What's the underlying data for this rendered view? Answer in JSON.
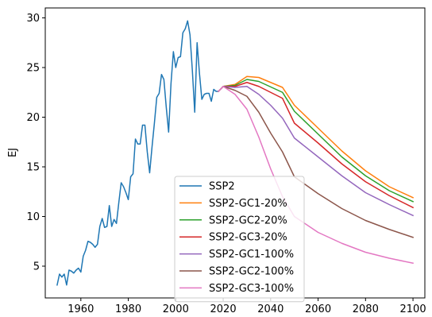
{
  "chart_data": {
    "type": "line",
    "title": "",
    "xlabel": "",
    "ylabel": "EJ",
    "xlim": [
      1945,
      2105
    ],
    "ylim": [
      1.8,
      31.0
    ],
    "xticks": [
      1960,
      1980,
      2000,
      2020,
      2040,
      2060,
      2080,
      2100
    ],
    "yticks": [
      5,
      10,
      15,
      20,
      25,
      30
    ],
    "grid": false,
    "legend_position": "lower-center",
    "series": [
      {
        "name": "SSP2",
        "color": "#1f77b4",
        "x": [
          1950,
          1951,
          1952,
          1953,
          1954,
          1955,
          1956,
          1957,
          1958,
          1959,
          1960,
          1961,
          1962,
          1963,
          1964,
          1965,
          1966,
          1967,
          1968,
          1969,
          1970,
          1971,
          1972,
          1973,
          1974,
          1975,
          1976,
          1977,
          1978,
          1979,
          1980,
          1981,
          1982,
          1983,
          1984,
          1985,
          1986,
          1987,
          1988,
          1989,
          1990,
          1991,
          1992,
          1993,
          1994,
          1995,
          1996,
          1997,
          1998,
          1999,
          2000,
          2001,
          2002,
          2003,
          2004,
          2005,
          2006,
          2007,
          2008,
          2009,
          2010,
          2011,
          2012,
          2013,
          2014,
          2015,
          2016,
          2017,
          2018
        ],
        "y": [
          3.1,
          4.2,
          3.9,
          4.2,
          3.1,
          4.6,
          4.5,
          4.3,
          4.6,
          4.8,
          4.4,
          6.0,
          6.6,
          7.5,
          7.4,
          7.2,
          6.9,
          7.2,
          9.0,
          9.8,
          8.9,
          9.0,
          11.1,
          9.0,
          9.7,
          9.3,
          11.4,
          13.4,
          13.0,
          12.4,
          11.7,
          14.0,
          14.3,
          17.8,
          17.3,
          17.3,
          19.2,
          19.2,
          16.5,
          14.4,
          17.0,
          19.4,
          22.0,
          22.4,
          24.3,
          23.8,
          21.0,
          18.5,
          23.4,
          26.6,
          25.0,
          26.0,
          26.1,
          28.5,
          28.9,
          29.7,
          28.3,
          24.7,
          20.5,
          27.5,
          24.4,
          21.8,
          22.3,
          22.4,
          22.4,
          21.6,
          22.8,
          22.6,
          22.6
        ]
      },
      {
        "name": "SSP2-GC1-20%",
        "color": "#ff7f0e",
        "x": [
          2018,
          2020,
          2025,
          2030,
          2035,
          2045,
          2050,
          2060,
          2070,
          2080,
          2090,
          2100
        ],
        "y": [
          22.6,
          23.1,
          23.3,
          24.1,
          24.0,
          23.0,
          21.2,
          18.9,
          16.6,
          14.6,
          13.0,
          11.9
        ]
      },
      {
        "name": "SSP2-GC2-20%",
        "color": "#2ca02c",
        "x": [
          2018,
          2020,
          2025,
          2030,
          2035,
          2045,
          2050,
          2060,
          2070,
          2080,
          2090,
          2100
        ],
        "y": [
          22.6,
          23.1,
          23.2,
          23.8,
          23.6,
          22.5,
          20.6,
          18.3,
          16.0,
          14.1,
          12.6,
          11.5
        ]
      },
      {
        "name": "SSP2-GC3-20%",
        "color": "#d62728",
        "x": [
          2018,
          2020,
          2025,
          2030,
          2035,
          2045,
          2050,
          2060,
          2070,
          2080,
          2090,
          2100
        ],
        "y": [
          22.6,
          23.1,
          23.1,
          23.5,
          23.1,
          21.9,
          19.4,
          17.4,
          15.3,
          13.5,
          12.1,
          10.9
        ]
      },
      {
        "name": "SSP2-GC1-100%",
        "color": "#9467bd",
        "x": [
          2018,
          2020,
          2025,
          2030,
          2035,
          2040,
          2045,
          2050,
          2060,
          2070,
          2080,
          2090,
          2100
        ],
        "y": [
          22.6,
          23.1,
          23.0,
          23.1,
          22.3,
          21.2,
          19.9,
          17.9,
          16.0,
          14.1,
          12.4,
          11.2,
          10.1
        ]
      },
      {
        "name": "SSP2-GC2-100%",
        "color": "#8c564b",
        "x": [
          2018,
          2020,
          2025,
          2030,
          2035,
          2040,
          2045,
          2050,
          2060,
          2070,
          2080,
          2090,
          2100
        ],
        "y": [
          22.6,
          23.1,
          22.7,
          22.1,
          20.5,
          18.4,
          16.5,
          14.0,
          12.3,
          10.8,
          9.6,
          8.7,
          7.9
        ]
      },
      {
        "name": "SSP2-GC3-100%",
        "color": "#e377c2",
        "x": [
          2018,
          2020,
          2025,
          2030,
          2035,
          2040,
          2045,
          2050,
          2060,
          2070,
          2080,
          2090,
          2100
        ],
        "y": [
          22.6,
          23.1,
          22.3,
          20.8,
          18.0,
          14.8,
          12.0,
          10.0,
          8.4,
          7.3,
          6.4,
          5.8,
          5.3
        ]
      }
    ]
  }
}
